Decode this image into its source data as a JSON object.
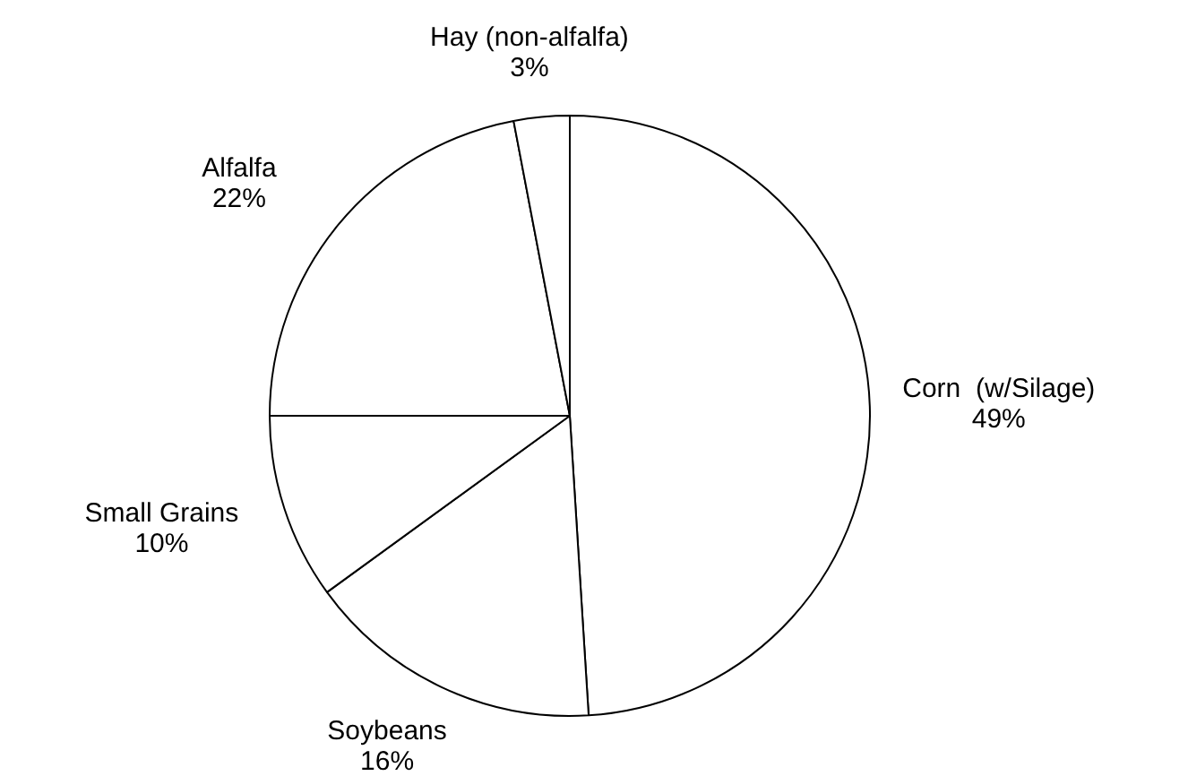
{
  "chart_data": {
    "type": "pie",
    "categories": [
      "Corn  (w/Silage)",
      "Soybeans",
      "Small Grains",
      "Alfalfa",
      "Hay (non-alfalfa)"
    ],
    "values": [
      49,
      16,
      10,
      22,
      3
    ],
    "value_labels": [
      "49%",
      "16%",
      "10%",
      "22%",
      "3%"
    ],
    "colors": [
      "#ffffff",
      "#ffffff",
      "#ffffff",
      "#ffffff",
      "#ffffff"
    ],
    "legend": false
  }
}
